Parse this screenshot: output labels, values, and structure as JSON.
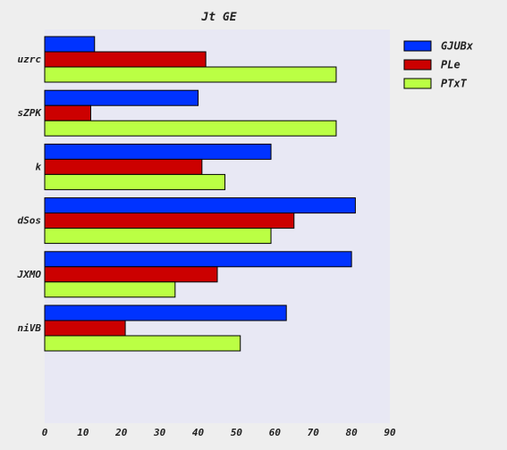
{
  "chart_data": {
    "type": "bar",
    "orientation": "horizontal",
    "title": "Jt GE",
    "xlabel": "",
    "ylabel": "",
    "categories": [
      "uzrc",
      "sZPK",
      "k",
      "dSos",
      "JXMO",
      "niVB"
    ],
    "series": [
      {
        "name": "GJUBx",
        "color": "#0033ff",
        "values": [
          13,
          40,
          59,
          81,
          80,
          63
        ]
      },
      {
        "name": "PLe",
        "color": "#cc0000",
        "values": [
          42,
          12,
          41,
          65,
          45,
          21
        ]
      },
      {
        "name": "PTxT",
        "color": "#bbff44",
        "values": [
          76,
          76,
          47,
          59,
          34,
          51
        ]
      }
    ],
    "xlim": [
      0,
      90
    ],
    "xticks": [
      0,
      10,
      20,
      30,
      40,
      50,
      60,
      70,
      80,
      90
    ],
    "grid": false,
    "legend": "top-right",
    "plot_background": "#e8e8f4",
    "page_background": "#eeeeee"
  }
}
